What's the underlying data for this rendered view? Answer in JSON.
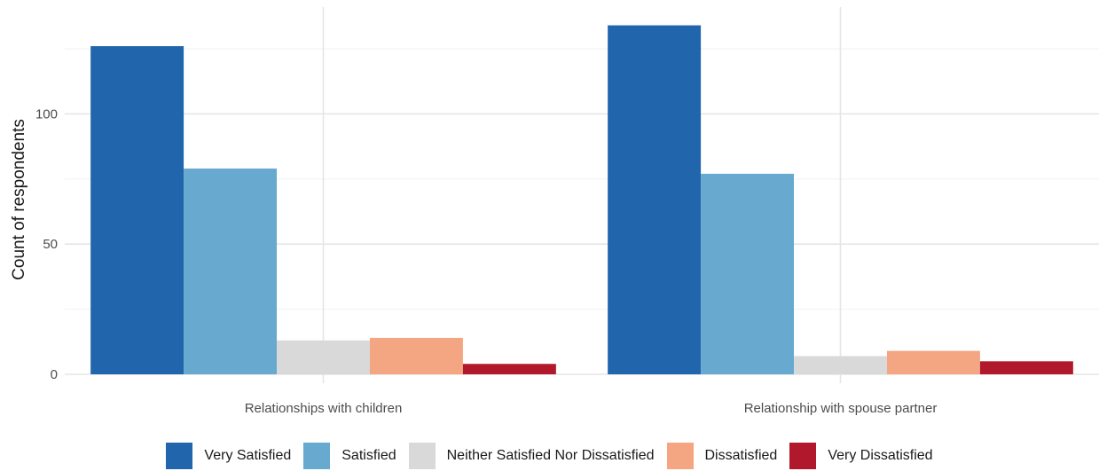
{
  "chart_data": {
    "type": "bar",
    "categories": [
      "Relationships with children",
      "Relationship with spouse partner"
    ],
    "series": [
      {
        "name": "Very Satisfied",
        "color": "#2166ac",
        "values": [
          126,
          134
        ]
      },
      {
        "name": "Satisfied",
        "color": "#67a9cf",
        "values": [
          79,
          77
        ]
      },
      {
        "name": "Neither Satisfied Nor Dissatisfied",
        "color": "#d9d9d9",
        "values": [
          13,
          7
        ]
      },
      {
        "name": "Dissatisfied",
        "color": "#f4a582",
        "values": [
          14,
          9
        ]
      },
      {
        "name": "Very Dissatisfied",
        "color": "#b2182b",
        "values": [
          4,
          5
        ]
      }
    ],
    "title": "",
    "xlabel": "",
    "ylabel": "Count of respondents",
    "ylim": [
      0,
      141
    ],
    "yticks": [
      0,
      50,
      100
    ],
    "grid": true,
    "legend_position": "bottom"
  }
}
